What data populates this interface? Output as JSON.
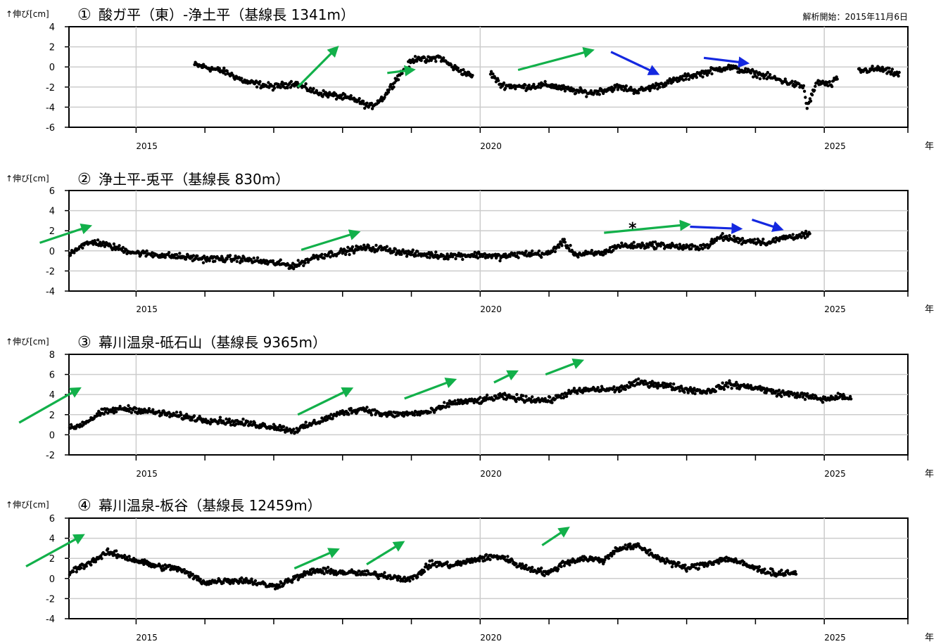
{
  "analysis_start": "解析開始：2015年11月6日",
  "colors": {
    "green": "#12b04a",
    "blue": "#1428e0",
    "points": "#000000",
    "grid": "#d0d0d0"
  },
  "chart_data": [
    {
      "type": "scatter",
      "number": "①",
      "title": "酸ガ平（東）-浄土平（基線長 1341m）",
      "ylabel": "↑伸び[cm]",
      "xlabel": "年",
      "xlim": [
        2013.0,
        2025.5
      ],
      "ylim": [
        -6,
        4
      ],
      "yticks": [
        4,
        2,
        0,
        -2,
        -4,
        -6
      ],
      "xticks": [
        "2015",
        "2020",
        "2025"
      ],
      "grid": true,
      "series": [
        {
          "x": [
            2015.85,
            2016.0,
            2016.3,
            2016.6,
            2017.0,
            2017.3,
            2017.6,
            2018.0,
            2018.2,
            2018.4,
            2018.6,
            2018.8,
            2019.0,
            2019.1,
            2019.2,
            2019.4,
            2019.6,
            2019.9
          ],
          "y": [
            0.2,
            0,
            -0.5,
            -1.5,
            -2.0,
            -1.6,
            -2.5,
            -3.0,
            -3.3,
            -4.0,
            -3.0,
            -1.0,
            0.5,
            1.0,
            0.6,
            1.0,
            0.0,
            -1.0
          ]
        },
        {
          "x": [
            2020.15,
            2020.3,
            2020.6,
            2021.0,
            2021.3,
            2021.6,
            2022.0,
            2022.3,
            2022.6,
            2023.0,
            2023.3,
            2023.6,
            2023.9,
            2024.2,
            2024.5,
            2024.7,
            2024.75,
            2024.9,
            2025.1,
            2025.2
          ],
          "y": [
            -0.6,
            -1.8,
            -2.0,
            -1.8,
            -2.3,
            -2.6,
            -2.0,
            -2.4,
            -1.8,
            -1.0,
            -0.5,
            0,
            -0.5,
            -1.0,
            -1.6,
            -2.0,
            -4.0,
            -1.5,
            -1.8,
            -1.0
          ]
        },
        {
          "x": [
            2025.5,
            2025.8,
            2026.1
          ],
          "y": [
            -0.4,
            -0.2,
            -0.8
          ]
        }
      ],
      "arrows": [
        {
          "color": "green",
          "from": [
            2017.35,
            -2.0
          ],
          "to": [
            2017.9,
            1.8
          ]
        },
        {
          "color": "green",
          "from": [
            2018.65,
            -0.6
          ],
          "to": [
            2019.0,
            -0.3
          ]
        },
        {
          "color": "green",
          "from": [
            2020.55,
            -0.3
          ],
          "to": [
            2021.6,
            1.6
          ]
        },
        {
          "color": "blue",
          "from": [
            2021.9,
            1.5
          ],
          "to": [
            2022.55,
            -0.6
          ]
        },
        {
          "color": "blue",
          "from": [
            2023.25,
            0.9
          ],
          "to": [
            2023.85,
            0.4
          ]
        }
      ]
    },
    {
      "type": "scatter",
      "number": "②",
      "title": "浄土平-兎平（基線長 830m）",
      "ylabel": "↑伸び[cm]",
      "xlabel": "年",
      "xlim": [
        2013.0,
        2025.5
      ],
      "ylim": [
        -4,
        6
      ],
      "yticks": [
        6,
        4,
        2,
        0,
        -2,
        -4
      ],
      "xticks": [
        "2015",
        "2020",
        "2025"
      ],
      "grid": true,
      "annotation": "*",
      "series": [
        {
          "x": [
            2013.25,
            2013.6,
            2014.0,
            2014.2,
            2014.4,
            2014.6,
            2015.0,
            2015.5,
            2016.0,
            2016.5,
            2017.0,
            2017.3,
            2017.6,
            2018.0,
            2018.3,
            2018.6,
            2019.0,
            2019.5,
            2020.0,
            2020.3,
            2020.6,
            2021.0,
            2021.2,
            2021.4,
            2021.8,
            2022.0,
            2022.3,
            2022.5,
            2022.8,
            2023.0,
            2023.3,
            2023.5,
            2023.8,
            2024.0,
            2024.2,
            2024.4,
            2024.6,
            2024.8
          ],
          "y": [
            -0.6,
            -0.8,
            -0.4,
            0.5,
            0.9,
            0.5,
            -0.2,
            -0.5,
            -0.8,
            -0.8,
            -1.2,
            -1.5,
            -0.6,
            -0.1,
            0.3,
            0.2,
            -0.3,
            -0.5,
            -0.4,
            -0.6,
            -0.3,
            -0.3,
            0.9,
            -0.4,
            -0.2,
            0.5,
            0.5,
            0.6,
            0.5,
            0.3,
            0.5,
            1.4,
            1.0,
            1.0,
            0.8,
            1.3,
            1.5,
            1.6
          ]
        }
      ],
      "arrows": [
        {
          "color": "green",
          "from": [
            2013.6,
            0.8
          ],
          "to": [
            2014.3,
            2.4
          ]
        },
        {
          "color": "green",
          "from": [
            2017.4,
            0.1
          ],
          "to": [
            2018.2,
            1.8
          ]
        },
        {
          "color": "green",
          "from": [
            2021.8,
            1.8
          ],
          "to": [
            2023.0,
            2.6
          ]
        },
        {
          "color": "blue",
          "from": [
            2023.05,
            2.4
          ],
          "to": [
            2023.75,
            2.2
          ]
        },
        {
          "color": "blue",
          "from": [
            2023.95,
            3.1
          ],
          "to": [
            2024.35,
            2.2
          ]
        }
      ]
    },
    {
      "type": "scatter",
      "number": "③",
      "title": "幕川温泉-砥石山（基線長 9365m）",
      "ylabel": "↑伸び[cm]",
      "xlabel": "年",
      "xlim": [
        2013.0,
        2025.5
      ],
      "ylim": [
        -2,
        8
      ],
      "yticks": [
        8,
        6,
        4,
        2,
        0,
        -2
      ],
      "xticks": [
        "2015",
        "2020",
        "2025"
      ],
      "grid": true,
      "series": [
        {
          "x": [
            2013.0,
            2013.4,
            2013.8,
            2014.2,
            2014.5,
            2014.8,
            2015.0,
            2015.5,
            2016.0,
            2016.5,
            2017.0,
            2017.3,
            2017.6,
            2018.0,
            2018.3,
            2018.6,
            2019.0,
            2019.3,
            2019.6,
            2020.0,
            2020.3,
            2020.6,
            2021.0,
            2021.3,
            2021.6,
            2022.0,
            2022.3,
            2022.6,
            2023.0,
            2023.3,
            2023.6,
            2024.0,
            2024.3,
            2024.6,
            2025.0,
            2025.2,
            2025.4
          ],
          "y": [
            0.2,
            0.0,
            0.0,
            1.0,
            2.2,
            2.6,
            2.5,
            2.0,
            1.5,
            1.2,
            0.8,
            0.4,
            1.2,
            2.2,
            2.6,
            2.0,
            2.1,
            2.3,
            3.2,
            3.4,
            3.8,
            3.6,
            3.4,
            4.2,
            4.5,
            4.5,
            5.2,
            5.0,
            4.5,
            4.3,
            5.0,
            4.7,
            4.2,
            4.0,
            3.5,
            3.8,
            3.6
          ]
        }
      ],
      "arrows": [
        {
          "color": "green",
          "from": [
            2013.3,
            1.2
          ],
          "to": [
            2014.15,
            4.5
          ]
        },
        {
          "color": "green",
          "from": [
            2017.35,
            2.0
          ],
          "to": [
            2018.1,
            4.5
          ]
        },
        {
          "color": "green",
          "from": [
            2018.9,
            3.6
          ],
          "to": [
            2019.6,
            5.4
          ]
        },
        {
          "color": "green",
          "from": [
            2020.2,
            5.2
          ],
          "to": [
            2020.5,
            6.2
          ]
        },
        {
          "color": "green",
          "from": [
            2020.95,
            6.0
          ],
          "to": [
            2021.45,
            7.3
          ]
        }
      ]
    },
    {
      "type": "scatter",
      "number": "④",
      "title": "幕川温泉-板谷（基線長 12459m）",
      "ylabel": "↑伸び[cm]",
      "xlabel": "年",
      "xlim": [
        2013.0,
        2025.5
      ],
      "ylim": [
        -4,
        6
      ],
      "yticks": [
        6,
        4,
        2,
        0,
        -2,
        -4
      ],
      "xticks": [
        "2015",
        "2020",
        "2025"
      ],
      "grid": true,
      "series": [
        {
          "x": [
            2013.0,
            2013.3,
            2013.6,
            2014.0,
            2014.3,
            2014.6,
            2015.0,
            2015.3,
            2015.6,
            2016.0,
            2016.3,
            2016.6,
            2017.0,
            2017.3,
            2017.6,
            2018.0,
            2018.3,
            2018.6,
            2019.0,
            2019.3,
            2019.6,
            2020.0,
            2020.3,
            2020.6,
            2021.0,
            2021.2,
            2021.5,
            2021.8,
            2022.0,
            2022.3,
            2022.6,
            2023.0,
            2023.3,
            2023.6,
            2024.0,
            2024.3,
            2024.6
          ],
          "y": [
            0.3,
            -0.5,
            -0.4,
            0.5,
            1.5,
            2.6,
            1.8,
            1.2,
            1.0,
            -0.4,
            -0.2,
            -0.2,
            -0.8,
            0.0,
            0.8,
            0.6,
            0.5,
            0.3,
            -0.1,
            1.5,
            1.3,
            2.0,
            2.2,
            1.2,
            0.5,
            1.5,
            2.0,
            1.8,
            3.0,
            3.2,
            2.0,
            1.0,
            1.5,
            2.0,
            1.0,
            0.5,
            0.6
          ]
        }
      ],
      "arrows": [
        {
          "color": "green",
          "from": [
            2013.4,
            1.2
          ],
          "to": [
            2014.2,
            4.2
          ]
        },
        {
          "color": "green",
          "from": [
            2017.3,
            1.0
          ],
          "to": [
            2017.9,
            2.8
          ]
        },
        {
          "color": "green",
          "from": [
            2018.35,
            1.4
          ],
          "to": [
            2018.85,
            3.5
          ]
        },
        {
          "color": "green",
          "from": [
            2020.9,
            3.3
          ],
          "to": [
            2021.25,
            4.9
          ]
        }
      ]
    }
  ]
}
